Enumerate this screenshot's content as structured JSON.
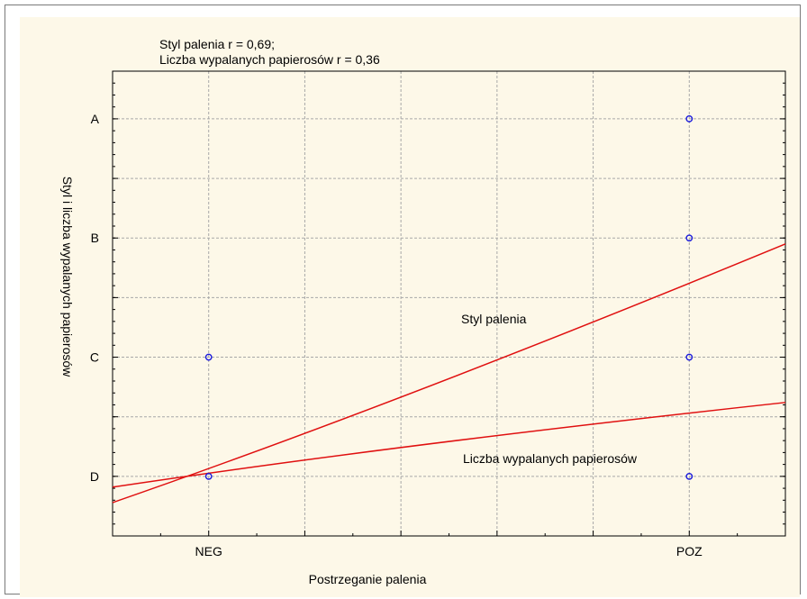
{
  "chart_data": {
    "type": "scatter",
    "title_lines": [
      "Styl palenia r = 0,69;",
      "Liczba wypalanych papierosów r = 0,36"
    ],
    "xlabel": "Postrzeganie palenia",
    "ylabel": "Styl i liczba wypalanych papierosów",
    "x_categories": [
      "NEG",
      "POZ"
    ],
    "y_categories": [
      "A",
      "B",
      "C",
      "D"
    ],
    "xlim": [
      -0.2,
      1.2
    ],
    "ylim": [
      0.5,
      4.4
    ],
    "grid": true,
    "points": [
      {
        "x": 0,
        "y": 2
      },
      {
        "x": 0,
        "y": 1
      },
      {
        "x": 1,
        "y": 4
      },
      {
        "x": 1,
        "y": 3
      },
      {
        "x": 1,
        "y": 2
      },
      {
        "x": 1,
        "y": 1
      }
    ],
    "fit_lines": [
      {
        "name": "Styl palenia",
        "x": [
          -0.2,
          0.4,
          1.2
        ],
        "y": [
          0.78,
          1.62,
          2.95
        ]
      },
      {
        "name": "Liczba wypalanych papierosów",
        "x": [
          -0.2,
          0.4,
          1.2
        ],
        "y": [
          0.91,
          1.27,
          1.62
        ]
      }
    ],
    "colors": {
      "points": "#1a1adc",
      "lines": "#e01010",
      "grid": "#a8a8a8",
      "background": "#fdf8e8"
    }
  }
}
